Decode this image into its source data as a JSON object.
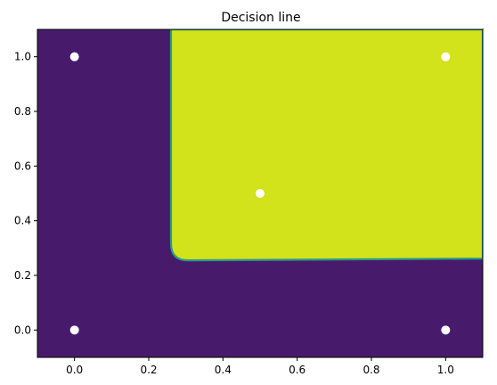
{
  "chart_data": {
    "type": "heatmap",
    "title": "Decision line",
    "xlabel": "",
    "ylabel": "",
    "xlim": [
      -0.1,
      1.1
    ],
    "ylim": [
      -0.1,
      1.1
    ],
    "x_ticks": [
      "0.0",
      "0.2",
      "0.4",
      "0.6",
      "0.8",
      "1.0"
    ],
    "y_ticks": [
      "0.0",
      "0.2",
      "0.4",
      "0.6",
      "0.8",
      "1.0"
    ],
    "grid": false,
    "background_color": "#481a6c",
    "region": {
      "color": "#d2e21b",
      "edge_color": "#2a9a8a",
      "x_min": 0.26,
      "y_min": 0.255,
      "corner_radius": 0.045
    },
    "points": {
      "color": "#ffffff",
      "x": [
        0.0,
        1.0,
        0.5,
        0.0,
        1.0
      ],
      "y": [
        1.0,
        1.0,
        0.5,
        0.0,
        0.0
      ]
    }
  }
}
